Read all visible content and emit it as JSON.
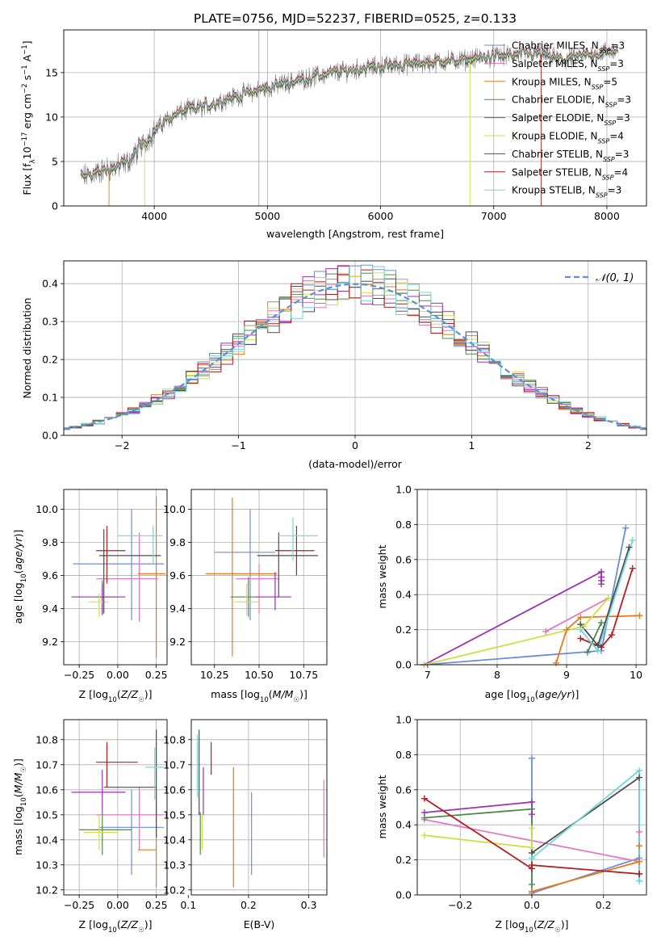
{
  "figure": {
    "title": "PLATE=0756, MJD=52237, FIBERID=0525, z=0.133"
  },
  "colors": {
    "Chabrier MILES": "#6a8fd6",
    "Salpeter MILES": "#e377c2",
    "Kroupa MILES": "#e07b20",
    "Chabrier ELODIE": "#4e8a4e",
    "Salpeter ELODIE": "#9b30b0",
    "Kroupa ELODIE": "#cde042",
    "Chabrier STELIB": "#4d4d4d",
    "Salpeter STELIB": "#b41e1e",
    "Kroupa STELIB": "#6fd6dc",
    "gaussian": "#5b8fd6",
    "data": "#808080"
  },
  "legend": {
    "spectrum": [
      {
        "name": "Chabrier MILES",
        "label": "Chabrier MILES, N",
        "sub": "SSP",
        "suffix": "=3"
      },
      {
        "name": "Salpeter MILES",
        "label": "Salpeter MILES, N",
        "sub": "SSP",
        "suffix": "=3"
      },
      {
        "name": "Kroupa MILES",
        "label": "Kroupa MILES, N",
        "sub": "SSP",
        "suffix": "=5"
      },
      {
        "name": "Chabrier ELODIE",
        "label": "Chabrier ELODIE, N",
        "sub": "SSP",
        "suffix": "=3"
      },
      {
        "name": "Salpeter ELODIE",
        "label": "Salpeter ELODIE, N",
        "sub": "SSP",
        "suffix": "=3"
      },
      {
        "name": "Kroupa ELODIE",
        "label": "Kroupa ELODIE, N",
        "sub": "SSP",
        "suffix": "=4"
      },
      {
        "name": "Chabrier STELIB",
        "label": "Chabrier STELIB, N",
        "sub": "SSP",
        "suffix": "=3"
      },
      {
        "name": "Salpeter STELIB",
        "label": "Salpeter STELIB, N",
        "sub": "SSP",
        "suffix": "=4"
      },
      {
        "name": "Kroupa STELIB",
        "label": "Kroupa STELIB, N",
        "sub": "SSP",
        "suffix": "=3"
      }
    ],
    "histogram": "𝒩(0, 1)"
  },
  "chart_data": [
    {
      "id": "spectrum",
      "type": "line",
      "xlabel": "wavelength [Angstrom, rest frame]",
      "ylabel": "Flux [f_λ 10^-17 erg cm^-2 s^-1 A^-1]",
      "xlim": [
        3200,
        8350
      ],
      "ylim": [
        0,
        19.8
      ],
      "xticks": [
        4000,
        5000,
        6000,
        7000,
        8000
      ],
      "yticks": [
        0,
        5,
        10,
        15
      ],
      "grid": true,
      "legend": "upper-right",
      "continuum": {
        "x": [
          3350,
          3500,
          3600,
          3700,
          3800,
          3900,
          4000,
          4100,
          4200,
          4300,
          4400,
          4600,
          4800,
          5000,
          5200,
          5400,
          5600,
          5800,
          6000,
          6200,
          6400,
          6600,
          6800,
          7000,
          7200,
          7400,
          7600,
          7800,
          8000,
          8100
        ],
        "y": [
          3.2,
          3.8,
          4.2,
          4.5,
          5.3,
          7.0,
          8.4,
          9.6,
          10.4,
          10.8,
          11.0,
          11.9,
          12.6,
          13.3,
          13.9,
          14.5,
          15.0,
          15.4,
          15.7,
          15.9,
          16.1,
          16.3,
          16.5,
          16.8,
          17.0,
          17.1,
          16.4,
          16.9,
          17.3,
          17.6
        ]
      }
    },
    {
      "id": "residuals",
      "type": "bar",
      "xlabel": "(data-model)/error",
      "ylabel": "Normed distribution",
      "xlim": [
        -2.5,
        2.5
      ],
      "ylim": [
        0,
        0.46
      ],
      "xticks": [
        -2,
        -1,
        0,
        1,
        2
      ],
      "yticks": [
        0.0,
        0.1,
        0.2,
        0.3,
        0.4
      ],
      "bin_width": 0.1,
      "grid": true,
      "legend": "upper-right"
    },
    {
      "id": "age-vs-Z",
      "type": "scatter",
      "xlabel": "Z [log10(Z/Z☉)]",
      "ylabel": "age [log10(age/yr)]",
      "xlim": [
        -0.35,
        0.32
      ],
      "ylim": [
        9.06,
        10.12
      ],
      "xticks": [
        -0.25,
        0.0,
        0.25
      ],
      "yticks": [
        9.2,
        9.4,
        9.6,
        9.8,
        10.0
      ],
      "points": [
        {
          "series": "Chabrier MILES",
          "x": 0.09,
          "y": 9.67,
          "xerr": [
            0.38,
            0.21
          ],
          "yerr": [
            0.34,
            0.33
          ]
        },
        {
          "series": "Salpeter MILES",
          "x": 0.14,
          "y": 9.58,
          "xerr": [
            0.28,
            0.12
          ],
          "yerr": [
            0.26,
            0.28
          ]
        },
        {
          "series": "Kroupa MILES",
          "x": 0.25,
          "y": 9.61,
          "xerr": [
            0.12,
            0.06
          ],
          "yerr": [
            0.51,
            0.47
          ]
        },
        {
          "series": "Chabrier ELODIE",
          "x": -0.1,
          "y": 9.47,
          "xerr": [
            0.04,
            0.07
          ],
          "yerr": [
            0.1,
            0.1
          ]
        },
        {
          "series": "Salpeter ELODIE",
          "x": -0.1,
          "y": 9.47,
          "xerr": [
            0.2,
            0.15
          ],
          "yerr": [
            0.11,
            0.08
          ]
        },
        {
          "series": "Kroupa ELODIE",
          "x": -0.12,
          "y": 9.44,
          "xerr": [
            0.07,
            0.06
          ],
          "yerr": [
            0.09,
            0.05
          ]
        },
        {
          "series": "Chabrier STELIB",
          "x": -0.09,
          "y": 9.72,
          "xerr": [
            0.03,
            0.37
          ],
          "yerr": [
            0.35,
            0.16
          ]
        },
        {
          "series": "Salpeter STELIB",
          "x": -0.07,
          "y": 9.75,
          "xerr": [
            0.07,
            0.12
          ],
          "yerr": [
            0.2,
            0.15
          ]
        },
        {
          "series": "Kroupa STELIB",
          "x": 0.23,
          "y": 9.84,
          "xerr": [
            0.23,
            0.06
          ],
          "yerr": [
            0.17,
            0.06
          ]
        }
      ]
    },
    {
      "id": "age-vs-mass",
      "type": "scatter",
      "xlabel": "mass [log10(M/M☉)]",
      "ylabel": "",
      "xlim": [
        10.12,
        10.88
      ],
      "ylim": [
        9.06,
        10.12
      ],
      "xticks": [
        10.25,
        10.5,
        10.75
      ],
      "yticks": [
        9.2,
        9.4,
        9.6,
        9.8,
        10.0
      ],
      "points": [
        {
          "series": "Chabrier MILES",
          "x": 10.45,
          "y": 9.74,
          "xerr": [
            0.2,
            0.14
          ],
          "yerr": [
            0.41,
            0.26
          ]
        },
        {
          "series": "Salpeter MILES",
          "x": 10.5,
          "y": 9.58,
          "xerr": [
            0.13,
            0.11
          ],
          "yerr": [
            0.21,
            0.09
          ]
        },
        {
          "series": "Kroupa MILES",
          "x": 10.35,
          "y": 9.61,
          "xerr": [
            0.15,
            0.25
          ],
          "yerr": [
            0.5,
            0.46
          ]
        },
        {
          "series": "Chabrier ELODIE",
          "x": 10.44,
          "y": 9.47,
          "xerr": [
            0.1,
            0.06
          ],
          "yerr": [
            0.12,
            0.12
          ]
        },
        {
          "series": "Salpeter ELODIE",
          "x": 10.59,
          "y": 9.47,
          "xerr": [
            0.11,
            0.09
          ],
          "yerr": [
            0.08,
            0.15
          ]
        },
        {
          "series": "Kroupa ELODIE",
          "x": 10.43,
          "y": 9.44,
          "xerr": [
            0.07,
            0.07
          ],
          "yerr": [
            0.08,
            0.11
          ]
        },
        {
          "series": "Chabrier STELIB",
          "x": 10.61,
          "y": 9.72,
          "xerr": [
            0.12,
            0.22
          ],
          "yerr": [
            0.25,
            0.14
          ]
        },
        {
          "series": "Salpeter STELIB",
          "x": 10.71,
          "y": 9.75,
          "xerr": [
            0.12,
            0.1
          ],
          "yerr": [
            0.15,
            0.15
          ]
        },
        {
          "series": "Kroupa STELIB",
          "x": 10.69,
          "y": 9.84,
          "xerr": [
            0.08,
            0.14
          ],
          "yerr": [
            0.15,
            0.11
          ]
        }
      ]
    },
    {
      "id": "weight-vs-age",
      "type": "line",
      "xlabel": "age [log10(age/yr)]",
      "ylabel": "mass weight",
      "xlim": [
        6.85,
        10.15
      ],
      "ylim": [
        0.0,
        1.0
      ],
      "xticks": [
        7,
        8,
        9,
        10
      ],
      "yticks": [
        0.0,
        0.2,
        0.4,
        0.6,
        0.8,
        1.0
      ],
      "grid": true,
      "series": [
        {
          "name": "Chabrier MILES",
          "x": [
            6.95,
            9.5,
            9.85
          ],
          "y": [
            0.0,
            0.08,
            0.78
          ]
        },
        {
          "name": "Salpeter MILES",
          "x": [
            8.7,
            9.6
          ],
          "y": [
            0.19,
            0.38
          ]
        },
        {
          "name": "Kroupa MILES",
          "x": [
            8.85,
            9.0,
            9.2,
            10.05
          ],
          "y": [
            0.01,
            0.2,
            0.27,
            0.28
          ]
        },
        {
          "name": "Chabrier ELODIE",
          "x": [
            9.3,
            9.5
          ],
          "y": [
            0.07,
            0.24
          ]
        },
        {
          "name": "Salpeter ELODIE",
          "x": [
            6.95,
            9.5,
            9.5,
            9.5,
            9.5
          ],
          "y": [
            0.0,
            0.53,
            0.5,
            0.48,
            0.46
          ]
        },
        {
          "name": "Kroupa ELODIE",
          "x": [
            6.95,
            9.25,
            9.6
          ],
          "y": [
            0.0,
            0.22,
            0.38
          ]
        },
        {
          "name": "Chabrier STELIB",
          "x": [
            9.2,
            9.45,
            9.9
          ],
          "y": [
            0.23,
            0.11,
            0.67
          ]
        },
        {
          "name": "Salpeter STELIB",
          "x": [
            9.2,
            9.5,
            9.65,
            9.95
          ],
          "y": [
            0.15,
            0.1,
            0.17,
            0.55
          ]
        },
        {
          "name": "Kroupa STELIB",
          "x": [
            9.2,
            9.45,
            9.95
          ],
          "y": [
            0.2,
            0.08,
            0.71
          ]
        }
      ]
    },
    {
      "id": "mass-vs-Z",
      "type": "scatter",
      "xlabel": "Z [log10(Z/Z☉)]",
      "ylabel": "mass [log10(M/M☉)]",
      "xlim": [
        -0.35,
        0.32
      ],
      "ylim": [
        10.18,
        10.88
      ],
      "xticks": [
        -0.25,
        0.0,
        0.25
      ],
      "yticks": [
        10.2,
        10.3,
        10.4,
        10.5,
        10.6,
        10.7,
        10.8
      ],
      "points": [
        {
          "series": "Chabrier MILES",
          "x": 0.09,
          "y": 10.45,
          "xerr": [
            0.21,
            0.21
          ],
          "yerr": [
            0.19,
            0.15
          ]
        },
        {
          "series": "Salpeter MILES",
          "x": 0.14,
          "y": 10.5,
          "xerr": [
            0.28,
            0.16
          ],
          "yerr": [
            0.14,
            0.11
          ]
        },
        {
          "series": "Kroupa MILES",
          "x": 0.25,
          "y": 10.36,
          "xerr": [
            0.12,
            0.0
          ],
          "yerr": [
            0.15,
            0.24
          ]
        },
        {
          "series": "Chabrier ELODIE",
          "x": -0.1,
          "y": 10.44,
          "xerr": [
            0.15,
            0.19
          ],
          "yerr": [
            0.1,
            0.07
          ]
        },
        {
          "series": "Salpeter ELODIE",
          "x": -0.1,
          "y": 10.59,
          "xerr": [
            0.2,
            0.15
          ],
          "yerr": [
            0.08,
            0.09
          ]
        },
        {
          "series": "Kroupa ELODIE",
          "x": -0.12,
          "y": 10.43,
          "xerr": [
            0.1,
            0.12
          ],
          "yerr": [
            0.07,
            0.07
          ]
        },
        {
          "series": "Chabrier STELIB",
          "x": 0.25,
          "y": 10.61,
          "xerr": [
            0.34,
            0.0
          ],
          "yerr": [
            0.2,
            0.23
          ]
        },
        {
          "series": "Salpeter STELIB",
          "x": -0.07,
          "y": 10.71,
          "xerr": [
            0.07,
            0.2
          ],
          "yerr": [
            0.1,
            0.08
          ]
        },
        {
          "series": "Kroupa STELIB",
          "x": 0.24,
          "y": 10.69,
          "xerr": [
            0.06,
            0.06
          ],
          "yerr": [
            0.13,
            0.08
          ]
        }
      ]
    },
    {
      "id": "mass-vs-EBV",
      "type": "scatter",
      "xlabel": "E(B-V)",
      "ylabel": "",
      "xlim": [
        0.105,
        0.33
      ],
      "ylim": [
        10.18,
        10.88
      ],
      "xticks": [
        0.1,
        0.2,
        0.3
      ],
      "yticks": [
        10.2,
        10.3,
        10.4,
        10.5,
        10.6,
        10.7,
        10.8
      ],
      "points": [
        {
          "series": "Chabrier MILES",
          "x": 0.205,
          "y": 10.45,
          "xerr": [
            0.0,
            0.0
          ],
          "yerr": [
            0.19,
            0.14
          ]
        },
        {
          "series": "Salpeter MILES",
          "x": 0.325,
          "y": 10.5,
          "xerr": [
            0.0,
            0.0
          ],
          "yerr": [
            0.17,
            0.14
          ]
        },
        {
          "series": "Kroupa MILES",
          "x": 0.175,
          "y": 10.36,
          "xerr": [
            0.0,
            0.0
          ],
          "yerr": [
            0.15,
            0.33
          ]
        },
        {
          "series": "Chabrier ELODIE",
          "x": 0.12,
          "y": 10.44,
          "xerr": [
            0.0,
            0.0
          ],
          "yerr": [
            0.1,
            0.07
          ]
        },
        {
          "series": "Salpeter ELODIE",
          "x": 0.125,
          "y": 10.59,
          "xerr": [
            0.0,
            0.0
          ],
          "yerr": [
            0.09,
            0.1
          ]
        },
        {
          "series": "Kroupa ELODIE",
          "x": 0.123,
          "y": 10.43,
          "xerr": [
            0.0,
            0.0
          ],
          "yerr": [
            0.07,
            0.07
          ]
        },
        {
          "series": "Chabrier STELIB",
          "x": 0.118,
          "y": 10.61,
          "xerr": [
            0.0,
            0.0
          ],
          "yerr": [
            0.11,
            0.23
          ]
        },
        {
          "series": "Salpeter STELIB",
          "x": 0.138,
          "y": 10.71,
          "xerr": [
            0.0,
            0.0
          ],
          "yerr": [
            0.05,
            0.08
          ]
        },
        {
          "series": "Kroupa STELIB",
          "x": 0.115,
          "y": 10.69,
          "xerr": [
            0.0,
            0.0
          ],
          "yerr": [
            0.12,
            0.13
          ]
        }
      ]
    },
    {
      "id": "weight-vs-Z",
      "type": "line",
      "xlabel": "Z [log10(Z/Z☉)]",
      "ylabel": "mass weight",
      "xlim": [
        -0.32,
        0.32
      ],
      "ylim": [
        0.0,
        1.0
      ],
      "xticks": [
        -0.2,
        0.0,
        0.2
      ],
      "yticks": [
        0.0,
        0.2,
        0.4,
        0.6,
        0.8,
        1.0
      ],
      "grid": true,
      "series": [
        {
          "name": "Chabrier MILES",
          "x": [
            0.0,
            0.0,
            0.3,
            0.3
          ],
          "y": [
            0.78,
            0.01,
            0.21,
            0.08
          ]
        },
        {
          "name": "Salpeter MILES",
          "x": [
            -0.3,
            0.3,
            0.3
          ],
          "y": [
            0.43,
            0.19,
            0.36
          ]
        },
        {
          "name": "Kroupa MILES",
          "x": [
            0.0,
            0.3,
            0.3
          ],
          "y": [
            0.02,
            0.19,
            0.28
          ]
        },
        {
          "name": "Chabrier ELODIE",
          "x": [
            -0.3,
            0.0,
            0.0
          ],
          "y": [
            0.44,
            0.49,
            0.06
          ]
        },
        {
          "name": "Salpeter ELODIE",
          "x": [
            -0.3,
            0.0,
            0.0
          ],
          "y": [
            0.47,
            0.53,
            0.46
          ]
        },
        {
          "name": "Kroupa ELODIE",
          "x": [
            -0.3,
            0.0,
            0.0
          ],
          "y": [
            0.34,
            0.27,
            0.38
          ]
        },
        {
          "name": "Chabrier STELIB",
          "x": [
            0.0,
            0.3,
            0.3
          ],
          "y": [
            0.24,
            0.67,
            0.12
          ]
        },
        {
          "name": "Salpeter STELIB",
          "x": [
            -0.3,
            0.0,
            0.0,
            0.3
          ],
          "y": [
            0.55,
            0.15,
            0.17,
            0.12
          ]
        },
        {
          "name": "Kroupa STELIB",
          "x": [
            0.0,
            0.3,
            0.3
          ],
          "y": [
            0.21,
            0.71,
            0.08
          ]
        }
      ]
    }
  ]
}
